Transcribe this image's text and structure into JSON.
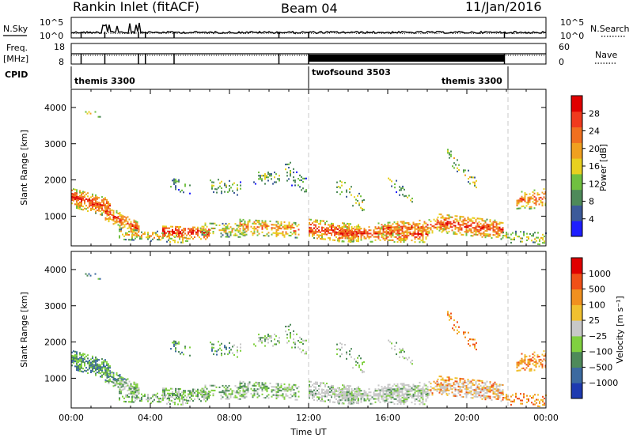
{
  "header": {
    "station": "Rankin Inlet (fitACF)",
    "beam": "Beam 04",
    "date": "11/Jan/2016"
  },
  "status": {
    "nsky_label": "N.Sky",
    "nsearch_label": "N.Search",
    "freq_label_1": "Freq.",
    "freq_label_2": "[MHz]",
    "nave_label": "Nave",
    "cpid_label": "CPID",
    "left_top_tick": "10^5",
    "left_bot_tick": "10^0",
    "right_top_tick": "10^5",
    "right_bot_tick": "10^0",
    "freq_top_tick": "18",
    "freq_bot_tick": "8",
    "nave_top_tick": "60",
    "nave_bot_tick": "0",
    "cpid_modes": [
      "themis 3300",
      "twofsound 3503",
      "themis 3300"
    ]
  },
  "colors": {
    "power_scale": [
      "#1e1eff",
      "#3c5a9a",
      "#4e8a5a",
      "#70c040",
      "#e8d020",
      "#f0a020",
      "#f07020",
      "#f03a1e",
      "#e00000"
    ],
    "velocity_scale": [
      "#e00000",
      "#f05018",
      "#f09020",
      "#f0c030",
      "#c8c8c8",
      "#80d040",
      "#4e8a5a",
      "#3c6aa0",
      "#1e3ab0"
    ],
    "dashed_line": "#c8c8c8"
  },
  "chart_data": [
    {
      "type": "heatmap",
      "panel": "power",
      "ylabel": "Slant Range [km]",
      "ylim": [
        180,
        4500
      ],
      "yticks": [
        "1000",
        "2000",
        "3000",
        "4000"
      ],
      "xlim": [
        0,
        24
      ],
      "xticks": [
        "00:00",
        "04:00",
        "08:00",
        "12:00",
        "16:00",
        "20:00",
        "00:00"
      ],
      "colorbar_label": "Power [dB]",
      "colorbar_ticks": [
        "4",
        "8",
        "12",
        "16",
        "20",
        "24",
        "28"
      ],
      "colorbar_range": [
        0,
        30
      ],
      "mode_boundaries_ut": [
        12.0,
        21.9
      ]
    },
    {
      "type": "heatmap",
      "panel": "velocity",
      "ylabel": "Slant Range [km]",
      "ylim": [
        180,
        4500
      ],
      "yticks": [
        "1000",
        "2000",
        "3000",
        "4000"
      ],
      "xlim": [
        0,
        24
      ],
      "xticks": [
        "00:00",
        "04:00",
        "08:00",
        "12:00",
        "16:00",
        "20:00",
        "00:00"
      ],
      "xlabel": "Time UT",
      "colorbar_label": "Velocity [m s⁻¹]",
      "colorbar_ticks": [
        "1000",
        "500",
        "100",
        "25",
        "−25",
        "−100",
        "−500",
        "−1000"
      ],
      "mode_boundaries_ut": [
        12.0,
        21.9
      ]
    }
  ]
}
